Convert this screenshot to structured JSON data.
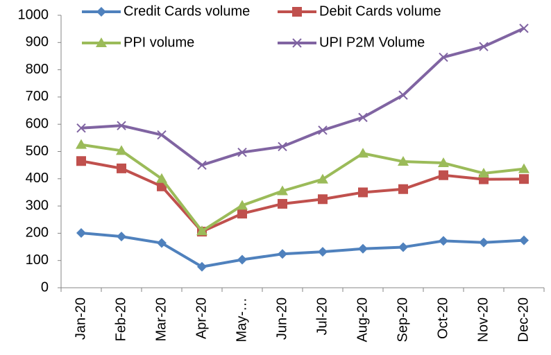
{
  "chart_data": {
    "type": "line",
    "categories": [
      "Jan-20",
      "Feb-20",
      "Mar-20",
      "Apr-20",
      "May-…",
      "Jun-20",
      "Jul-20",
      "Aug-20",
      "Sep-20",
      "Oct-20",
      "Nov-20",
      "Dec-20"
    ],
    "series": [
      {
        "name": "Credit Cards volume",
        "color": "#4F81BD",
        "marker": "diamond",
        "values": [
          201,
          188,
          164,
          77,
          103,
          124,
          132,
          143,
          149,
          172,
          166,
          174
        ]
      },
      {
        "name": "Debit Cards volume",
        "color": "#C0504D",
        "marker": "square",
        "values": [
          465,
          438,
          372,
          206,
          272,
          308,
          325,
          350,
          362,
          413,
          398,
          399
        ]
      },
      {
        "name": "PPI volume",
        "color": "#9BBB59",
        "marker": "triangle",
        "values": [
          525,
          503,
          400,
          208,
          302,
          355,
          398,
          493,
          463,
          458,
          420,
          436
        ]
      },
      {
        "name": "UPI P2M Volume",
        "color": "#8064A2",
        "marker": "x",
        "values": [
          586,
          595,
          561,
          450,
          497,
          518,
          578,
          625,
          707,
          846,
          885,
          952
        ]
      }
    ],
    "ylim": [
      0,
      1000
    ],
    "yticks": [
      0,
      100,
      200,
      300,
      400,
      500,
      600,
      700,
      800,
      900,
      1000
    ],
    "grid": false,
    "legend": "top"
  }
}
